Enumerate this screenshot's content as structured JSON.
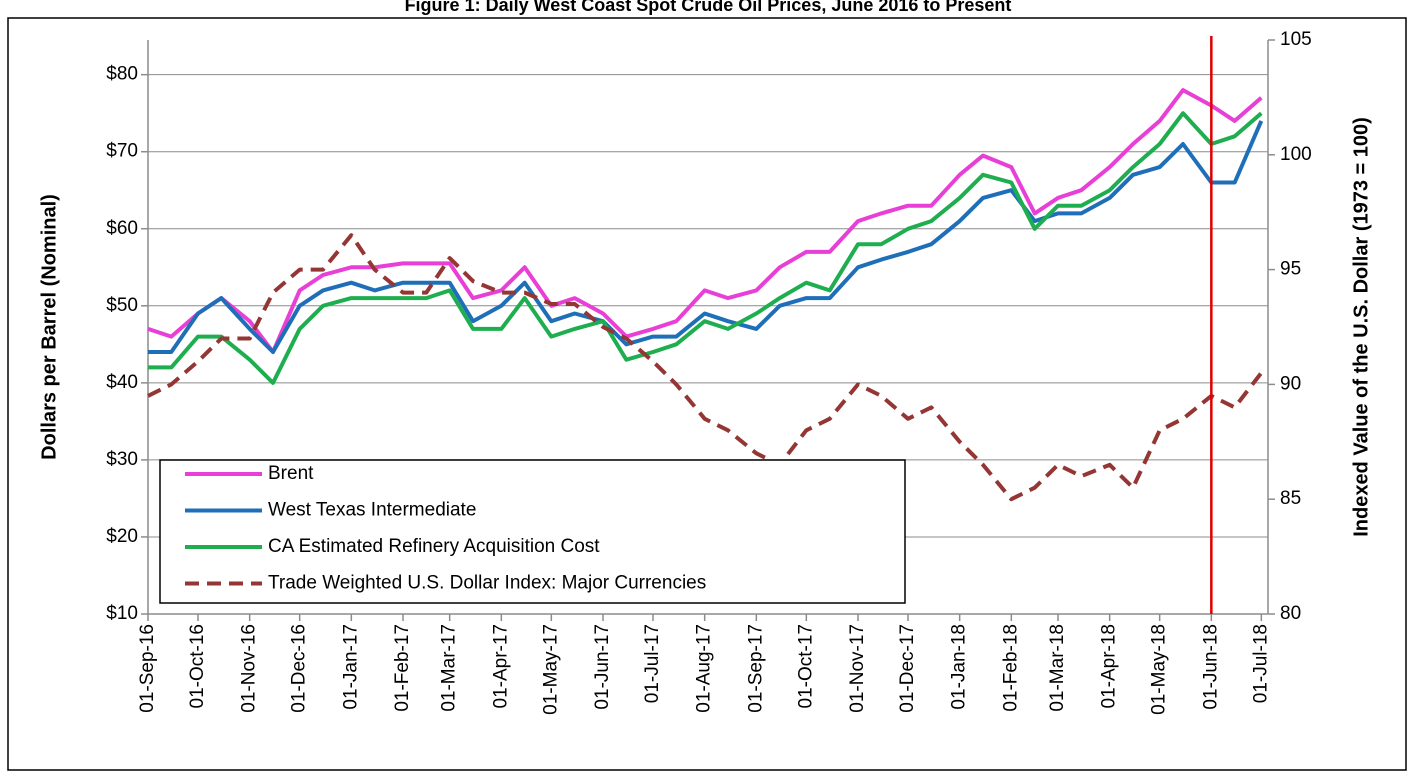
{
  "chart_data": {
    "type": "line",
    "title": "Figure 1: Daily West Coast Spot Crude Oil Prices, June 2016 to Present",
    "y_label": "Dollars per Barrel (Nominal)",
    "y2_label": "Indexed Value of the U.S. Dollar (1973 = 100)",
    "x": [
      "01-Sep-16",
      "15-Sep-16",
      "01-Oct-16",
      "15-Oct-16",
      "01-Nov-16",
      "15-Nov-16",
      "01-Dec-16",
      "15-Dec-16",
      "01-Jan-17",
      "15-Jan-17",
      "01-Feb-17",
      "15-Feb-17",
      "01-Mar-17",
      "15-Mar-17",
      "01-Apr-17",
      "15-Apr-17",
      "01-May-17",
      "15-May-17",
      "01-Jun-17",
      "15-Jun-17",
      "01-Jul-17",
      "15-Jul-17",
      "01-Aug-17",
      "15-Aug-17",
      "01-Sep-17",
      "15-Sep-17",
      "01-Oct-17",
      "15-Oct-17",
      "01-Nov-17",
      "15-Nov-17",
      "01-Dec-17",
      "15-Dec-17",
      "01-Jan-18",
      "15-Jan-18",
      "01-Feb-18",
      "15-Feb-18",
      "01-Mar-18",
      "15-Mar-18",
      "01-Apr-18",
      "15-Apr-18",
      "01-May-18",
      "15-May-18",
      "01-Jun-18",
      "15-Jun-18",
      "01-Jul-18"
    ],
    "series": [
      {
        "name": "Brent",
        "color": "#e83fd6",
        "values": [
          47,
          46,
          49,
          51,
          48,
          44,
          52,
          54,
          55,
          55,
          55.5,
          55.5,
          55.5,
          51,
          52,
          55,
          50,
          51,
          49,
          46,
          47,
          48,
          52,
          51,
          52,
          55,
          57,
          57,
          61,
          62,
          63,
          63,
          67,
          69.5,
          68,
          62,
          64,
          65,
          68,
          71,
          74,
          78,
          76,
          74,
          77
        ]
      },
      {
        "name": "West Texas Intermediate",
        "color": "#1f6fb8",
        "values": [
          44,
          44,
          49,
          51,
          47,
          44,
          50,
          52,
          53,
          52,
          53,
          53,
          53,
          48,
          50,
          53,
          48,
          49,
          48,
          45,
          46,
          46,
          49,
          48,
          47,
          50,
          51,
          51,
          55,
          56,
          57,
          58,
          61,
          64,
          65,
          61,
          62,
          62,
          64,
          67,
          68,
          71,
          66,
          66,
          74
        ]
      },
      {
        "name": "CA Estimated Refinery Acquisition Cost",
        "color": "#1fae4f",
        "values": [
          42,
          42,
          46,
          46,
          43,
          40,
          47,
          50,
          51,
          51,
          51,
          51,
          52,
          47,
          47,
          51,
          46,
          47,
          48,
          43,
          44,
          45,
          48,
          47,
          49,
          51,
          53,
          52,
          58,
          58,
          60,
          61,
          64,
          67,
          66,
          60,
          63,
          63,
          65,
          68,
          71,
          75,
          71,
          72,
          75
        ]
      },
      {
        "name": "Trade Weighted U.S. Dollar Index: Major Currencies",
        "color": "#943634",
        "dashed": true,
        "axis": "y2",
        "values": [
          89.5,
          90,
          91,
          92,
          92,
          94,
          95,
          95,
          96.5,
          95,
          94,
          94,
          95.5,
          94.5,
          94,
          94,
          93.5,
          93.5,
          92.5,
          92,
          91,
          90,
          88.5,
          88,
          87,
          86.5,
          88,
          88.5,
          90,
          89.5,
          88.5,
          89,
          87.5,
          86.5,
          85,
          85.5,
          86.5,
          86,
          86.5,
          85.5,
          88,
          88.5,
          89.5,
          89,
          90.5
        ]
      }
    ],
    "xlim": [
      "01-Sep-16",
      "05-Jul-18"
    ],
    "xticks": [
      "01-Sep-16",
      "01-Oct-16",
      "01-Nov-16",
      "01-Dec-16",
      "01-Jan-17",
      "01-Feb-17",
      "01-Mar-17",
      "01-Apr-17",
      "01-May-17",
      "01-Jun-17",
      "01-Jul-17",
      "01-Aug-17",
      "01-Sep-17",
      "01-Oct-17",
      "01-Nov-17",
      "01-Dec-17",
      "01-Jan-18",
      "01-Feb-18",
      "01-Mar-18",
      "01-Apr-18",
      "01-May-18",
      "01-Jun-18",
      "01-Jul-18"
    ],
    "ylim": [
      10,
      84.5
    ],
    "yticks": [
      {
        "value": 10,
        "label": "$10"
      },
      {
        "value": 20,
        "label": "$20"
      },
      {
        "value": 30,
        "label": "$30"
      },
      {
        "value": 40,
        "label": "$40"
      },
      {
        "value": 50,
        "label": "$50"
      },
      {
        "value": 60,
        "label": "$60"
      },
      {
        "value": 70,
        "label": "$70"
      },
      {
        "value": 80,
        "label": "$80"
      }
    ],
    "y2lim": [
      80,
      105
    ],
    "y2ticks": [
      80,
      85,
      90,
      95,
      100,
      105
    ],
    "vline": "01-Jun-18",
    "vline_color": "#e00000",
    "grid": true
  }
}
